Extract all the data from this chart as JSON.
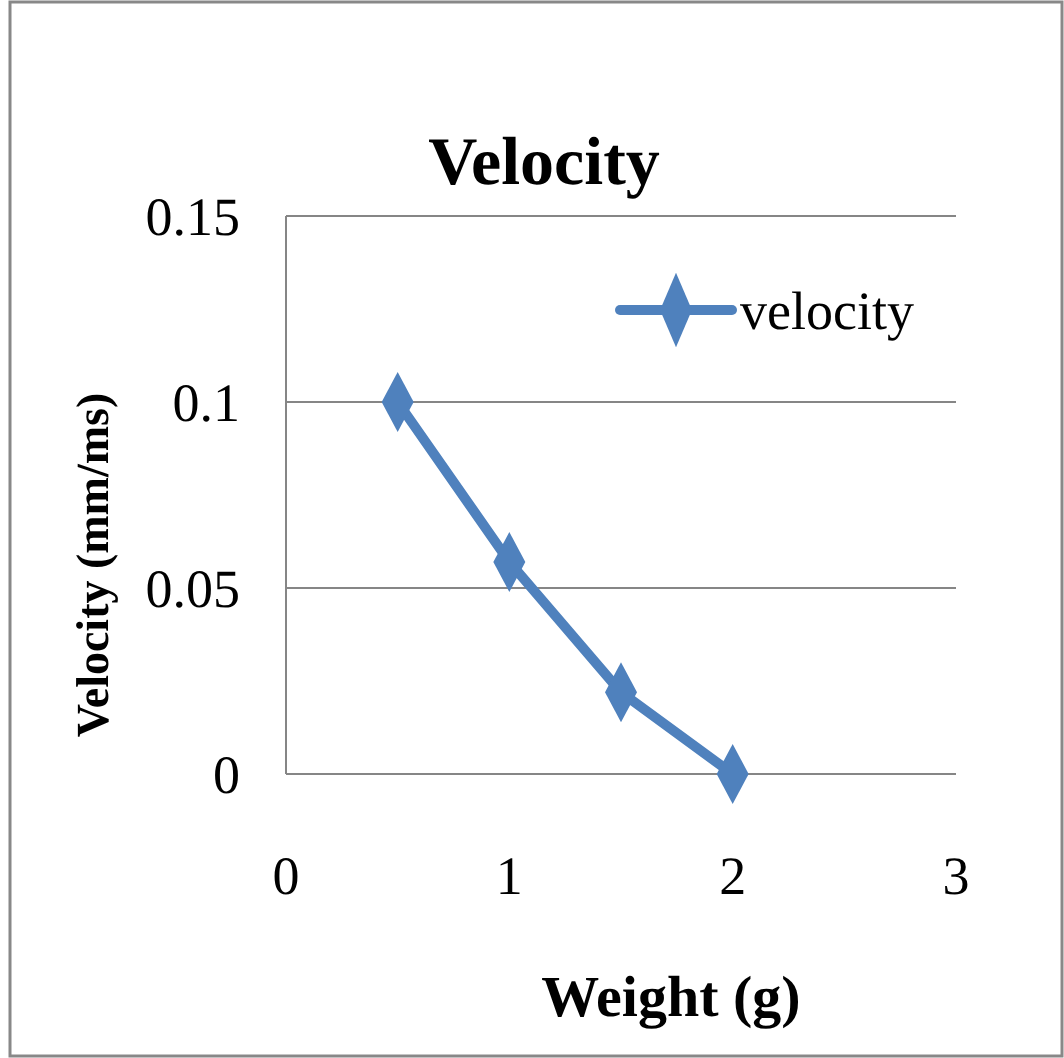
{
  "chart_data": {
    "type": "line",
    "title": "Velocity",
    "xlabel": "Weight (g)",
    "ylabel": "Velocity (mm/ms)",
    "x": [
      0.5,
      1,
      1.5,
      2
    ],
    "series": [
      {
        "name": "velocity",
        "color": "#4f81bd",
        "values": [
          0.1,
          0.057,
          0.022,
          0
        ]
      }
    ],
    "xlim": [
      0,
      3
    ],
    "xticks": [
      0,
      1,
      2,
      3
    ],
    "ylim": [
      0,
      0.15
    ],
    "yticks": [
      0,
      0.05,
      0.1,
      0.15
    ],
    "grid": "y",
    "legend": "top right",
    "marker": "diamond",
    "line_style": "solid"
  }
}
